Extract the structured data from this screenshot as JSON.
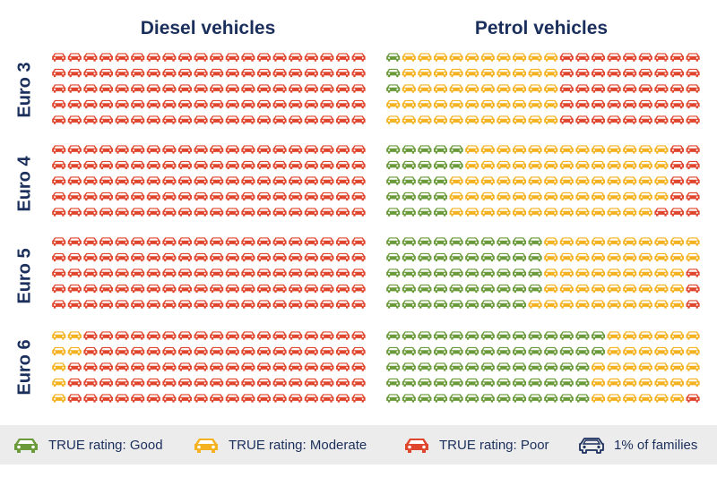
{
  "chart_data": {
    "type": "pictogram",
    "columns": [
      "Diesel vehicles",
      "Petrol vehicles"
    ],
    "rows": [
      "Euro 3",
      "Euro 4",
      "Euro 5",
      "Euro 6"
    ],
    "unit": "1% of families",
    "categories": [
      "TRUE rating: Good",
      "TRUE rating: Moderate",
      "TRUE rating: Poor"
    ],
    "colors": {
      "good": "#6a9a3a",
      "moderate": "#f4b221",
      "poor": "#e0452d",
      "unit_outline": "#1b2f5c"
    },
    "series": [
      {
        "column": "Diesel vehicles",
        "row": "Euro 3",
        "good": 0,
        "moderate": 0,
        "poor": 100
      },
      {
        "column": "Diesel vehicles",
        "row": "Euro 4",
        "good": 0,
        "moderate": 0,
        "poor": 100
      },
      {
        "column": "Diesel vehicles",
        "row": "Euro 5",
        "good": 0,
        "moderate": 0,
        "poor": 100
      },
      {
        "column": "Diesel vehicles",
        "row": "Euro 6",
        "good": 0,
        "moderate": 7,
        "poor": 93
      },
      {
        "column": "Petrol vehicles",
        "row": "Euro 3",
        "good": 3,
        "moderate": 52,
        "poor": 45
      },
      {
        "column": "Petrol vehicles",
        "row": "Euro 4",
        "good": 22,
        "moderate": 67,
        "poor": 11
      },
      {
        "column": "Petrol vehicles",
        "row": "Euro 5",
        "good": 49,
        "moderate": 48,
        "poor": 3
      },
      {
        "column": "Petrol vehicles",
        "row": "Euro 6",
        "good": 67,
        "moderate": 32,
        "poor": 1
      }
    ]
  },
  "legend": {
    "good": "TRUE rating: Good",
    "moderate": "TRUE rating: Moderate",
    "poor": "TRUE rating: Poor",
    "unit": "1% of families"
  }
}
